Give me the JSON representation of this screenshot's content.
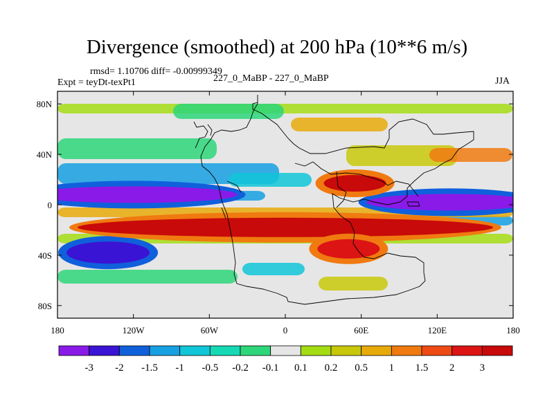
{
  "title": "Divergence (smoothed) at 200 hPa (10**6 m/s)",
  "stats_line": "rmsd= 1.10706 diff= -0.00999349",
  "expt_line": "Expt = teyDt-texPt1",
  "center_label": "227_0_MaBP - 227_0_MaBP",
  "season": "JJA",
  "chart_data": {
    "type": "heatmap",
    "title": "Divergence (smoothed) at 200 hPa (10**6 m/s)",
    "variable": "Divergence (smoothed)",
    "level": "200 hPa",
    "units": "10**6 m/s",
    "x_ticks": [
      "180",
      "120W",
      "60W",
      "0",
      "60E",
      "120E",
      "180"
    ],
    "x_range": [
      -180,
      180
    ],
    "y_ticks": [
      "80N",
      "40N",
      "0",
      "40S",
      "80S"
    ],
    "y_range": [
      -90,
      90
    ],
    "contour_levels": [
      "-3",
      "-2",
      "-1.5",
      "-1",
      "-0.5",
      "-0.2",
      "-0.1",
      "0.1",
      "0.2",
      "0.5",
      "1",
      "1.5",
      "2",
      "3"
    ],
    "colorbar_colors": [
      "#8a1ae8",
      "#3a14d4",
      "#1060dc",
      "#16a0e2",
      "#10c6d8",
      "#15d9b4",
      "#2ed67a",
      "#e6e6e6",
      "#a4dc14",
      "#c8c80a",
      "#e8aa0a",
      "#f07a10",
      "#ee4a14",
      "#dc1414",
      "#c80a0a"
    ],
    "features": [
      {
        "name": "equatorial-convergence-west",
        "lon": -120,
        "lat": 8,
        "level": "-3"
      },
      {
        "name": "equatorial-convergence-east",
        "lon": 130,
        "lat": 2,
        "level": "-3"
      },
      {
        "name": "southern-convergence-band",
        "lon": -140,
        "lat": -38,
        "level": "-2"
      },
      {
        "name": "tropical-divergence-band",
        "lon": 0,
        "lat": -18,
        "level": "3"
      },
      {
        "name": "asian-monsoon-divergence",
        "lon": 55,
        "lat": 17,
        "level": "3"
      },
      {
        "name": "southern-african-divergence",
        "lon": 50,
        "lat": -35,
        "level": "2"
      }
    ]
  }
}
